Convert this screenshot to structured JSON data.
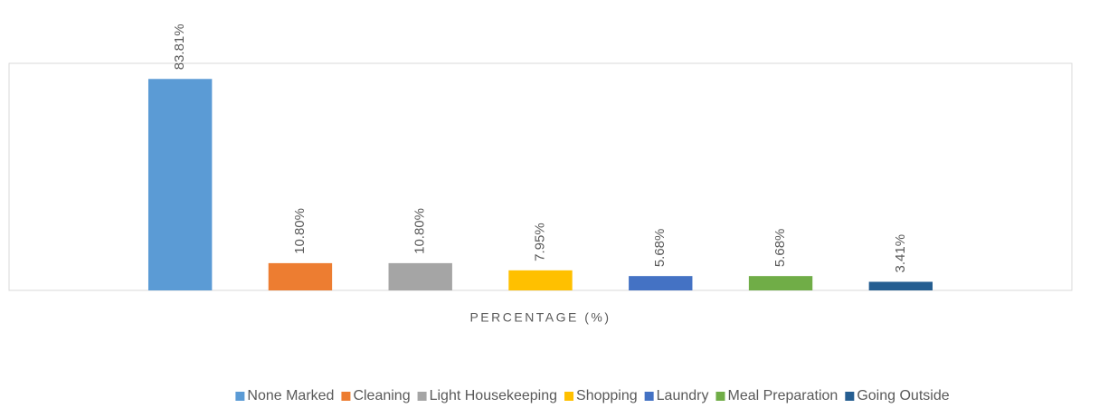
{
  "chart_data": {
    "type": "bar",
    "categories": [
      "PERCENTAGE (%)"
    ],
    "series": [
      {
        "name": "None Marked",
        "color": "#5b9bd5",
        "values": [
          83.81
        ],
        "value_labels": [
          "83.81%"
        ]
      },
      {
        "name": "Cleaning",
        "color": "#ed7d31",
        "values": [
          10.8
        ],
        "value_labels": [
          "10.80%"
        ]
      },
      {
        "name": "Light Housekeeping",
        "color": "#a5a5a5",
        "values": [
          10.8
        ],
        "value_labels": [
          "10.80%"
        ]
      },
      {
        "name": "Shopping",
        "color": "#ffc000",
        "values": [
          7.95
        ],
        "value_labels": [
          "7.95%"
        ]
      },
      {
        "name": "Laundry",
        "color": "#4472c4",
        "values": [
          5.68
        ],
        "value_labels": [
          "5.68%"
        ]
      },
      {
        "name": "Meal Preparation",
        "color": "#70ad47",
        "values": [
          5.68
        ],
        "value_labels": [
          "5.68%"
        ]
      },
      {
        "name": "Going Outside",
        "color": "#255e91",
        "values": [
          3.41
        ],
        "value_labels": [
          "3.41%"
        ]
      }
    ],
    "ylim": [
      0,
      90
    ],
    "legend": "bottom"
  }
}
